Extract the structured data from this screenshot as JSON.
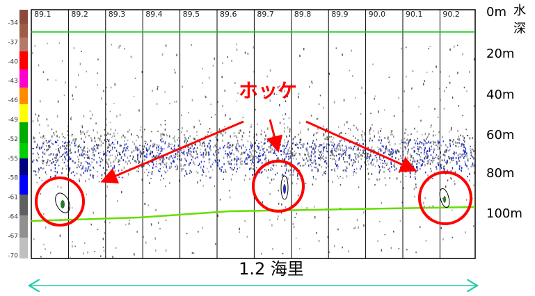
{
  "color_scale_labels": [
    "-34",
    "-37",
    "-40",
    "-43",
    "-46",
    "-49",
    "-52",
    "-55",
    "-58",
    "-61",
    "-64",
    "-67",
    "-70"
  ],
  "distance_labels": [
    "89.1",
    "89.2",
    "89.3",
    "89.4",
    "89.5",
    "89.6",
    "89.7",
    "89.8",
    "89.9",
    "90.0",
    "90.1",
    "90.2"
  ],
  "depth_labels": [
    "0m",
    "20m",
    "40m",
    "60m",
    "80m",
    "100m"
  ],
  "depth_title": "水深",
  "annotation": "ホッケ",
  "scale_label": "1.2 海里"
}
